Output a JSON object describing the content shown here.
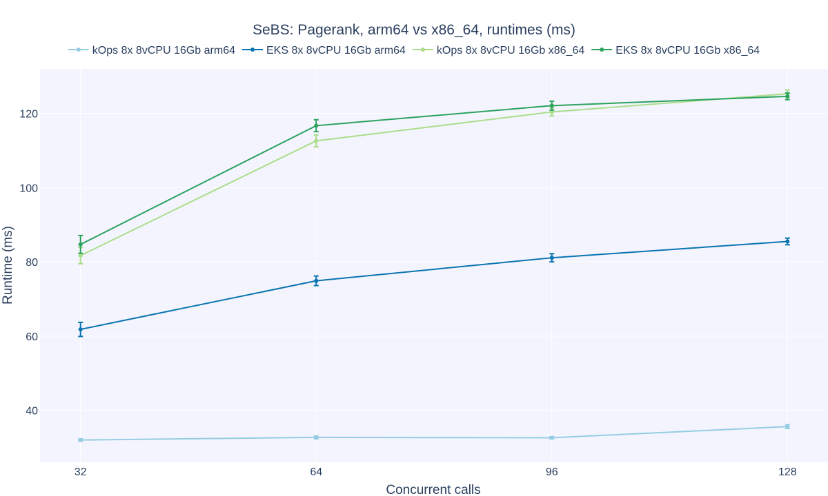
{
  "chart_data": {
    "type": "line",
    "title": "SeBS: Pagerank, arm64 vs x86_64, runtimes (ms)",
    "xlabel": "Concurrent calls",
    "ylabel": "Runtime (ms)",
    "x": [
      32,
      64,
      96,
      128
    ],
    "x_ticks": [
      "32",
      "64",
      "96",
      "128"
    ],
    "y_ticks": [
      "40",
      "60",
      "80",
      "100",
      "120"
    ],
    "xlim": [
      26.5,
      133.5
    ],
    "ylim": [
      26,
      132
    ],
    "grid": true,
    "legend_position": "top",
    "plot_background": "#f3f4fd",
    "series": [
      {
        "name": "kOps 8x 8vCPU 16Gb arm64",
        "color": "#94cde3",
        "values": [
          32.0,
          32.7,
          32.6,
          35.6
        ],
        "errors": [
          0.3,
          0.4,
          0.3,
          0.5
        ]
      },
      {
        "name": "EKS 8x 8vCPU 16Gb arm64",
        "color": "#0a74b0",
        "values": [
          61.8,
          74.9,
          81.1,
          85.5
        ],
        "errors": [
          1.9,
          1.3,
          1.1,
          0.9
        ]
      },
      {
        "name": "kOps 8x 8vCPU 16Gb x86_64",
        "color": "#aadd8a",
        "values": [
          81.7,
          112.6,
          120.4,
          125.3
        ],
        "errors": [
          2.2,
          1.6,
          1.1,
          1.0
        ]
      },
      {
        "name": "EKS 8x 8vCPU 16Gb x86_64",
        "color": "#2ca25f",
        "values": [
          84.7,
          116.7,
          122.1,
          124.6
        ],
        "errors": [
          2.4,
          1.6,
          1.2,
          0.9
        ]
      }
    ]
  }
}
